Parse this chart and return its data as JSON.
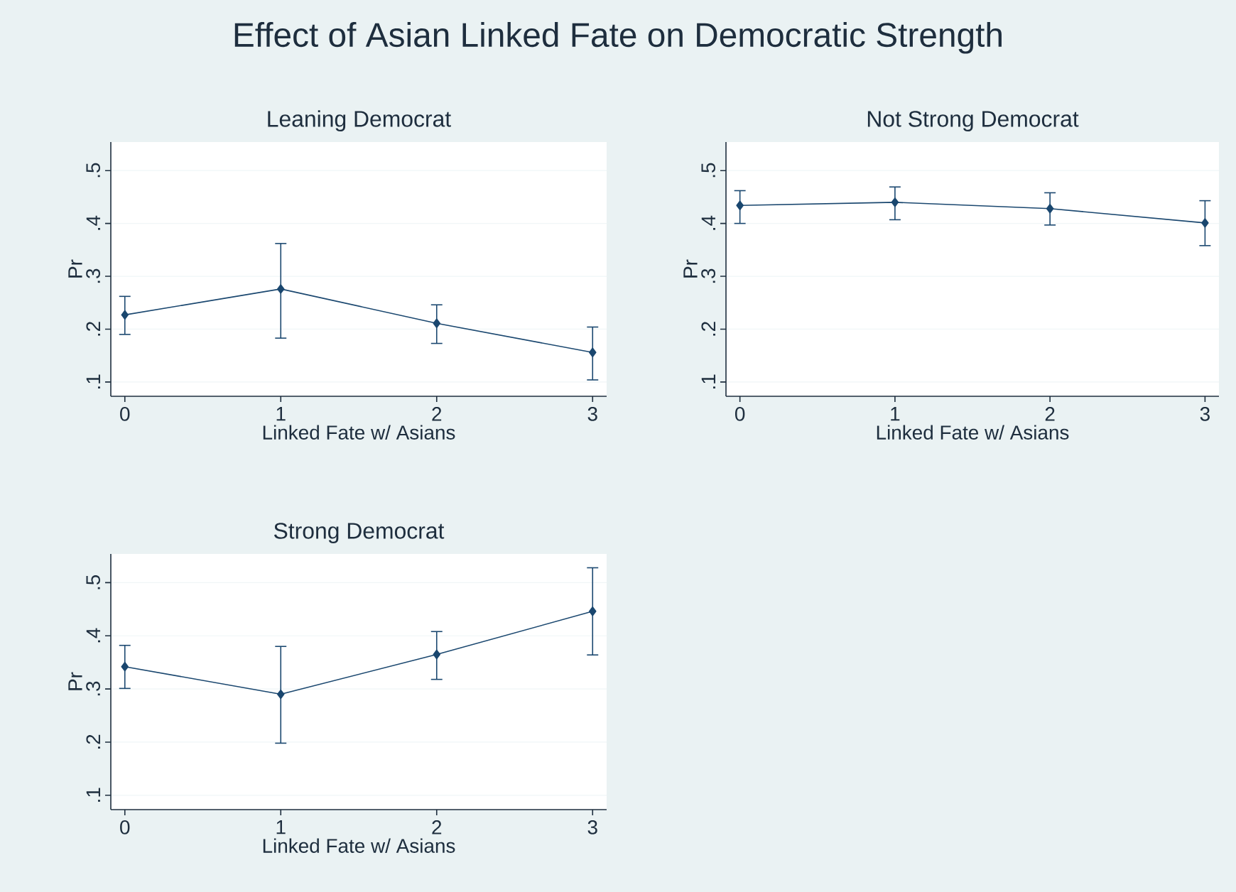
{
  "chart_data": [
    {
      "type": "line",
      "title": "Effect of Asian Linked Fate on Democratic Strength",
      "subtitle": "Leaning Democrat",
      "xlabel": "Linked Fate w/ Asians",
      "ylabel": "Pr",
      "x": [
        0,
        1,
        2,
        3
      ],
      "series": [
        {
          "color": "#1a476f",
          "values": [
            0.227,
            0.276,
            0.211,
            0.156
          ],
          "errors": [
            [
              0.19,
              0.262
            ],
            [
              0.183,
              0.362
            ],
            [
              0.173,
              0.246
            ],
            [
              0.104,
              0.204
            ]
          ]
        }
      ],
      "xlim": [
        -0.09,
        3.09
      ],
      "ylim": [
        0.073,
        0.554
      ],
      "xticks": [
        0,
        1,
        2,
        3
      ],
      "yticks": [
        {
          "value": 0.1,
          "label": ".1"
        },
        {
          "value": 0.2,
          "label": ".2"
        },
        {
          "value": 0.3,
          "label": ".3"
        },
        {
          "value": 0.4,
          "label": ".4"
        },
        {
          "value": 0.5,
          "label": ".5"
        }
      ],
      "grid": "y",
      "marker": "diamond"
    },
    {
      "type": "line",
      "title": "Not Strong Democrat",
      "xlabel": "Linked Fate w/ Asians",
      "ylabel": "Pr",
      "x": [
        0,
        1,
        2,
        3
      ],
      "series": [
        {
          "color": "#1a476f",
          "values": [
            0.434,
            0.44,
            0.428,
            0.401
          ],
          "errors": [
            [
              0.4,
              0.462
            ],
            [
              0.407,
              0.469
            ],
            [
              0.397,
              0.458
            ],
            [
              0.358,
              0.443
            ]
          ]
        }
      ],
      "xlim": [
        -0.09,
        3.09
      ],
      "ylim": [
        0.073,
        0.554
      ],
      "xticks": [
        0,
        1,
        2,
        3
      ],
      "yticks": [
        {
          "value": 0.1,
          "label": ".1"
        },
        {
          "value": 0.2,
          "label": ".2"
        },
        {
          "value": 0.3,
          "label": ".3"
        },
        {
          "value": 0.4,
          "label": ".4"
        },
        {
          "value": 0.5,
          "label": ".5"
        }
      ],
      "grid": "y",
      "marker": "diamond"
    },
    {
      "type": "line",
      "title": "Strong Democrat",
      "xlabel": "Linked Fate w/ Asians",
      "ylabel": "Pr",
      "x": [
        0,
        1,
        2,
        3
      ],
      "series": [
        {
          "color": "#1a476f",
          "values": [
            0.342,
            0.29,
            0.365,
            0.446
          ],
          "errors": [
            [
              0.301,
              0.382
            ],
            [
              0.198,
              0.38
            ],
            [
              0.318,
              0.408
            ],
            [
              0.364,
              0.528
            ]
          ]
        }
      ],
      "xlim": [
        -0.09,
        3.09
      ],
      "ylim": [
        0.073,
        0.554
      ],
      "xticks": [
        0,
        1,
        2,
        3
      ],
      "yticks": [
        {
          "value": 0.1,
          "label": ".1"
        },
        {
          "value": 0.2,
          "label": ".2"
        },
        {
          "value": 0.3,
          "label": ".3"
        },
        {
          "value": 0.4,
          "label": ".4"
        },
        {
          "value": 0.5,
          "label": ".5"
        }
      ],
      "grid": "y",
      "marker": "diamond"
    }
  ]
}
